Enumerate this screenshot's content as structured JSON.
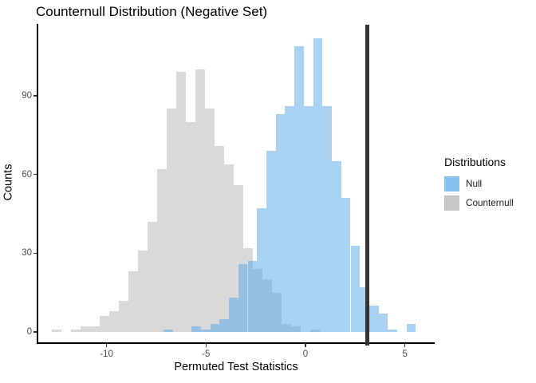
{
  "title": "Counternull Distribution (Negative Set)",
  "axes": {
    "x_label": "Permuted Test Statistics",
    "y_label": "Counts",
    "x_ticks": [
      -10,
      -5,
      0,
      5
    ],
    "y_ticks": [
      0,
      30,
      60,
      90
    ]
  },
  "legend": {
    "title": "Distributions",
    "items": [
      {
        "label": "Null",
        "swatch_color": "#85c2ef"
      },
      {
        "label": "Counternull",
        "swatch_color": "#c6c6c6"
      }
    ]
  },
  "colors": {
    "null_fill": "rgba(91,168,230,0.52)",
    "counternull_fill": "#d9d9d9",
    "reference_line": "#333333",
    "axis_line": "#000000",
    "tick_text": "#4d4d4d"
  },
  "chart_data": {
    "type": "bar",
    "subtype": "overlaid-histograms",
    "title": "Counternull Distribution (Negative Set)",
    "xlabel": "Permuted Test Statistics",
    "ylabel": "Counts",
    "xlim": [
      -13.5,
      6.5
    ],
    "ylim": [
      0,
      117
    ],
    "grid": false,
    "legend_position": "right",
    "reference_vline_x": 3.1,
    "series": [
      {
        "name": "Counternull",
        "z": 1,
        "fill": "#d9d9d9",
        "bin_width": 0.48,
        "centers": [
          -12.5,
          -12.02,
          -11.54,
          -11.06,
          -10.58,
          -10.1,
          -9.62,
          -9.14,
          -8.66,
          -8.18,
          -7.7,
          -7.22,
          -6.74,
          -6.26,
          -5.78,
          -5.3,
          -4.82,
          -4.34,
          -3.86,
          -3.38,
          -2.9,
          -2.42,
          -1.94,
          -1.46,
          -0.98,
          -0.5,
          -0.02,
          0.46
        ],
        "counts": [
          1,
          0,
          1,
          2,
          2,
          6,
          8,
          12,
          23,
          31,
          42,
          62,
          85,
          99,
          80,
          100,
          85,
          71,
          64,
          56,
          32,
          24,
          20,
          15,
          3,
          2,
          0,
          1
        ]
      },
      {
        "name": "Null",
        "z": 2,
        "fill": "rgba(91,168,230,0.52)",
        "bin_width": 0.47,
        "centers": [
          -6.9,
          -6.43,
          -5.96,
          -5.49,
          -5.02,
          -4.55,
          -4.08,
          -3.61,
          -3.14,
          -2.67,
          -2.2,
          -1.73,
          -1.26,
          -0.79,
          -0.32,
          0.15,
          0.62,
          1.09,
          1.56,
          2.03,
          2.5,
          2.97,
          3.44,
          3.91,
          4.38,
          4.85,
          5.32
        ],
        "counts": [
          1,
          0,
          0,
          2,
          1,
          3,
          5,
          13,
          26,
          27,
          47,
          69,
          83,
          86,
          109,
          86,
          112,
          86,
          65,
          51,
          33,
          17,
          10,
          7,
          1,
          0,
          3
        ]
      }
    ]
  }
}
